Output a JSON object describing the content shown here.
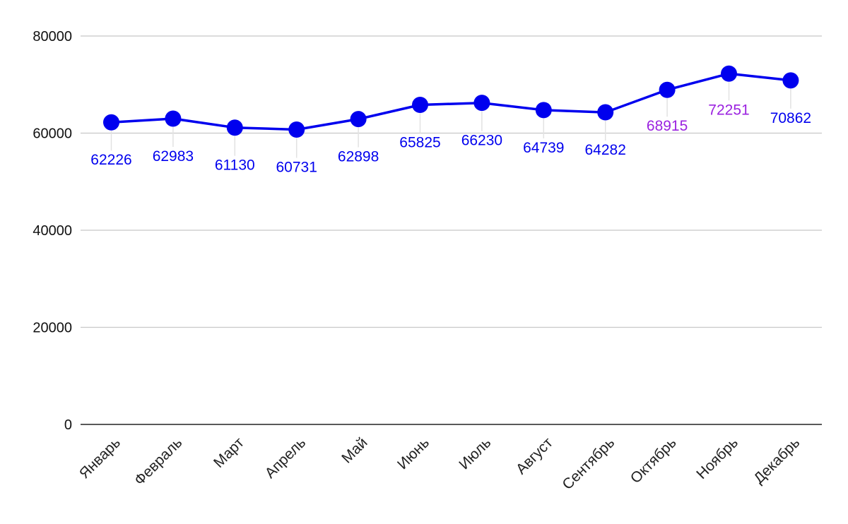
{
  "chart_data": {
    "type": "line",
    "title": "",
    "xlabel": "",
    "ylabel": "",
    "categories": [
      "Январь",
      "Февраль",
      "Март",
      "Апрель",
      "Май",
      "Июнь",
      "Июль",
      "Август",
      "Сентябрь",
      "Октябрь",
      "Ноябрь",
      "Декабрь"
    ],
    "series": [
      {
        "name": "",
        "values": [
          62226,
          62983,
          61130,
          60731,
          62898,
          65825,
          66230,
          64739,
          64282,
          68915,
          72251,
          70862
        ],
        "color": "#0000ee",
        "label_color": "#0000ee",
        "highlight_label_color": "#9b22e0",
        "highlight_labels": [
          "Октябрь",
          "Ноябрь"
        ]
      }
    ],
    "yticks": [
      0,
      20000,
      40000,
      60000,
      80000
    ],
    "ylim": [
      0,
      80000
    ],
    "grid": true,
    "legend": "none",
    "data_labels": true
  }
}
